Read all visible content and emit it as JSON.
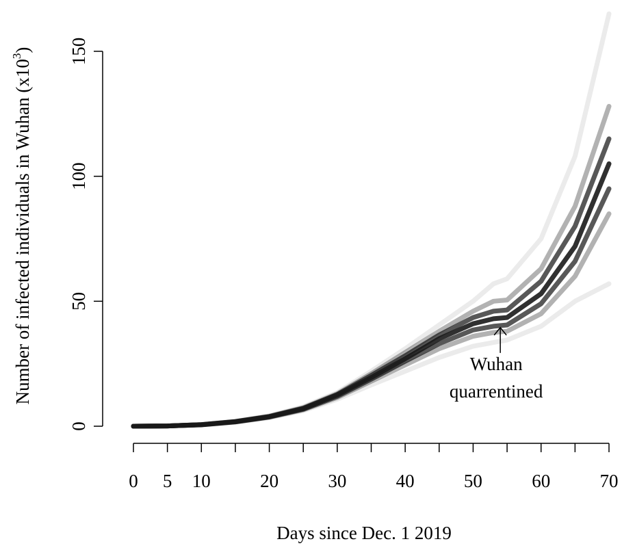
{
  "chart_data": {
    "type": "line",
    "xlabel": "Days since Dec. 1 2019",
    "ylabel": [
      "Number of infected individuals in Wuhan (x10",
      "3",
      ")"
    ],
    "annotation": {
      "lines": [
        "Wuhan",
        "quarrentined"
      ],
      "x": 54,
      "y": 40
    },
    "x": [
      0,
      5,
      10,
      15,
      20,
      25,
      30,
      35,
      40,
      45,
      50,
      53,
      55,
      60,
      65,
      70
    ],
    "series": [
      {
        "color": "#000000",
        "opacity": 0.08,
        "values": [
          0,
          0.1,
          0.7,
          2,
          4.2,
          7.8,
          13.5,
          22,
          31,
          40.5,
          50,
          57,
          59,
          75,
          108,
          165
        ]
      },
      {
        "color": "#000000",
        "opacity": 0.08,
        "values": [
          0,
          0.1,
          0.5,
          1.6,
          3.4,
          6.2,
          10.8,
          16.5,
          22,
          27.5,
          32,
          33.5,
          34.5,
          40,
          50,
          57
        ]
      },
      {
        "color": "#000000",
        "opacity": 0.3,
        "values": [
          0,
          0.1,
          0.65,
          1.9,
          4,
          7.4,
          13,
          21,
          29.5,
          38,
          46,
          50,
          50.5,
          63,
          88,
          128
        ]
      },
      {
        "color": "#000000",
        "opacity": 0.3,
        "values": [
          0,
          0.1,
          0.55,
          1.7,
          3.6,
          6.6,
          11.5,
          18,
          24.5,
          31,
          36,
          37.5,
          38,
          45,
          60,
          85
        ]
      },
      {
        "color": "#111111",
        "opacity": 0.7,
        "values": [
          0,
          0.1,
          0.62,
          1.85,
          3.9,
          7.2,
          12.7,
          20.3,
          28.2,
          36.5,
          43.5,
          46,
          46.5,
          58,
          80,
          115
        ]
      },
      {
        "color": "#111111",
        "opacity": 0.7,
        "values": [
          0,
          0.1,
          0.58,
          1.75,
          3.7,
          6.8,
          12,
          18.8,
          26,
          33,
          38.5,
          40,
          40.5,
          49,
          66,
          95
        ]
      },
      {
        "color": "#1a1a1a",
        "opacity": 0.9,
        "values": [
          0,
          0.1,
          0.6,
          1.8,
          3.8,
          7,
          12.5,
          19.5,
          27,
          35,
          41,
          43,
          43.5,
          53,
          72,
          105
        ]
      }
    ],
    "xlim": [
      0,
      70
    ],
    "xticks": [
      0,
      5,
      10,
      20,
      30,
      40,
      50,
      60,
      70
    ],
    "xminorticks": [
      15,
      25,
      35,
      45,
      55,
      65
    ],
    "ylim": [
      0,
      150
    ],
    "yticks": [
      0,
      50,
      100,
      150
    ],
    "grid": false
  }
}
